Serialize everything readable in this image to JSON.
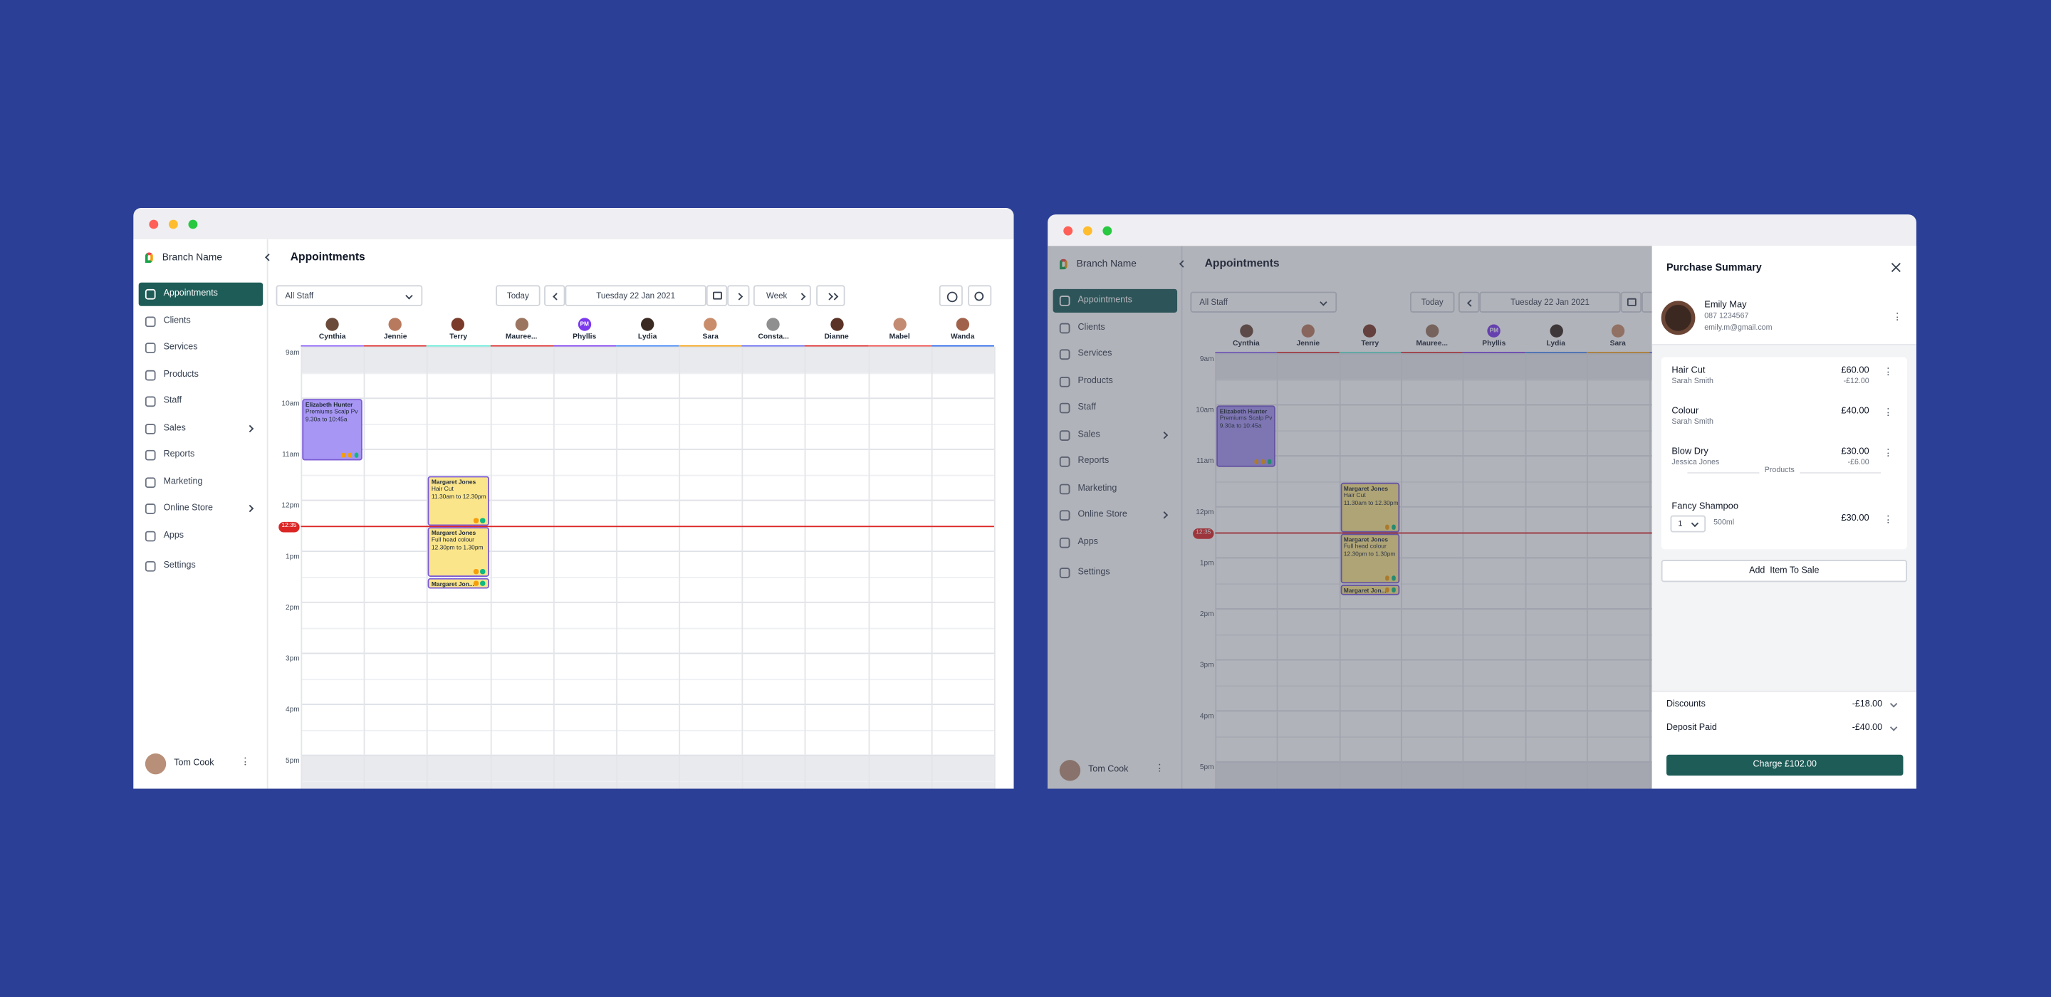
{
  "sidebar": {
    "brand": "Branch Name",
    "nav": [
      {
        "label": "Appointments",
        "active": true
      },
      {
        "label": "Clients"
      },
      {
        "label": "Services"
      },
      {
        "label": "Products"
      },
      {
        "label": "Staff"
      },
      {
        "label": "Sales",
        "has_children": true
      },
      {
        "label": "Reports"
      },
      {
        "label": "Marketing"
      },
      {
        "label": "Online Store",
        "has_children": true
      },
      {
        "label": "Apps"
      },
      {
        "label": "Settings"
      }
    ],
    "user": "Tom Cook"
  },
  "header": {
    "title": "Appointments"
  },
  "toolbar": {
    "staff_filter": "All Staff",
    "today": "Today",
    "date": "Tuesday 22 Jan 2021",
    "view": "Week"
  },
  "staff": [
    {
      "name": "Cynthia",
      "color": "#8b5cf6"
    },
    {
      "name": "Jennie",
      "color": "#dc2626"
    },
    {
      "name": "Terry",
      "color": "#5eead4"
    },
    {
      "name": "Mauree...",
      "color": "#dc2626"
    },
    {
      "name": "Phyllis",
      "color": "#7c3aed",
      "initials": "PM"
    },
    {
      "name": "Lydia",
      "color": "#3b82f6"
    },
    {
      "name": "Sara",
      "color": "#f59e0b"
    },
    {
      "name": "Consta...",
      "color": "#6366f1"
    },
    {
      "name": "Dianne",
      "color": "#dc2626"
    },
    {
      "name": "Mabel",
      "color": "#ef4444"
    },
    {
      "name": "Wanda",
      "color": "#2563eb"
    }
  ],
  "times": [
    "9am",
    "10am",
    "11am",
    "12pm",
    "1pm",
    "2pm",
    "3pm",
    "4pm",
    "5pm"
  ],
  "now": "12:35",
  "appointments": [
    {
      "client": "Elizabeth Hunter",
      "service": "Premiums Scalp Pv",
      "time": "9.30a to 10:45a",
      "color": "#a796f3"
    },
    {
      "client": "Margaret Jones",
      "service": "Hair Cut",
      "time": "11.30am to 12.30pm",
      "color": "#fbe58b"
    },
    {
      "client": "Margaret Jones",
      "service": "Full head colour",
      "time": "12.30pm to 1.30pm",
      "color": "#fbe58b"
    },
    {
      "client": "Margaret Jon...",
      "color": "#fbe58b"
    }
  ],
  "purchase_summary": {
    "title": "Purchase Summary",
    "client": {
      "name": "Emily May",
      "phone": "087 1234567",
      "email": "emily.m@gmail.com"
    },
    "items": [
      {
        "name": "Hair Cut",
        "staff": "Sarah Smith",
        "price": "£60.00",
        "discount": "-£12.00"
      },
      {
        "name": "Colour",
        "staff": "Sarah Smith",
        "price": "£40.00"
      },
      {
        "name": "Blow Dry",
        "staff": "Jessica Jones",
        "price": "£30.00",
        "discount": "-£6.00"
      }
    ],
    "products_label": "Products",
    "product": {
      "name": "Fancy Shampoo",
      "qty": "1",
      "size": "500ml",
      "price": "£30.00"
    },
    "add_button": "Add  Item To Sale",
    "discounts": {
      "label": "Discounts",
      "value": "-£18.00"
    },
    "deposit": {
      "label": "Deposit Paid",
      "value": "-£40.00"
    },
    "charge": "Charge £102.00"
  }
}
